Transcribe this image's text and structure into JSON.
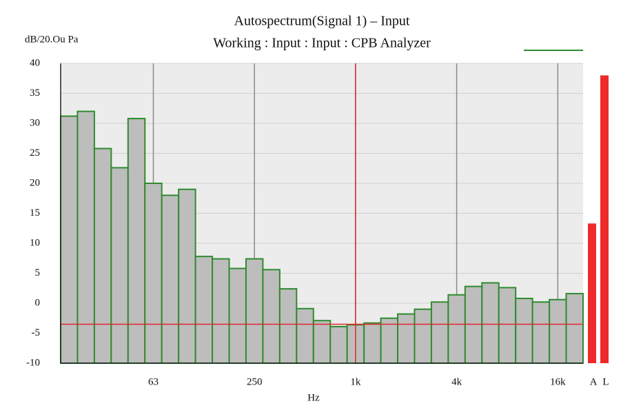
{
  "chart_data": {
    "type": "bar",
    "title": "Autospectrum(Signal 1) – Input",
    "subtitle": "Working : Input : Input : CPB Analyzer",
    "y_label": "dB/20.Ou Pa",
    "x_label": "Hz",
    "categories": [
      null,
      null,
      null,
      null,
      null,
      "63",
      null,
      null,
      null,
      null,
      null,
      "250",
      null,
      null,
      null,
      null,
      null,
      "1k",
      null,
      null,
      null,
      null,
      null,
      "4k",
      null,
      null,
      null,
      null,
      null,
      "16k",
      null
    ],
    "series": [
      {
        "name": "Input",
        "color": "#2e8b2e",
        "fill": "#bdbdbd",
        "values": [
          31.2,
          32,
          25.8,
          22.6,
          30.8,
          20,
          18,
          19,
          7.8,
          7.4,
          5.8,
          7.4,
          5.6,
          2.4,
          -0.9,
          -2.9,
          -3.9,
          -3.6,
          -3.3,
          -2.5,
          -1.8,
          -1.0,
          0.2,
          1.4,
          2.8,
          3.4,
          2.6,
          0.8,
          0.2,
          0.6,
          1.6
        ]
      }
    ],
    "ylim": [
      -10,
      40
    ],
    "yticks": [
      -10,
      -5,
      0,
      5,
      10,
      15,
      20,
      25,
      30,
      35,
      40
    ],
    "grid": true,
    "cursor": {
      "category": 17,
      "value": -3.5,
      "color": "#e02828"
    },
    "overall": {
      "categories": [
        "A",
        "L"
      ],
      "values": [
        13.3,
        38
      ],
      "color": "#ee2a2a"
    }
  }
}
